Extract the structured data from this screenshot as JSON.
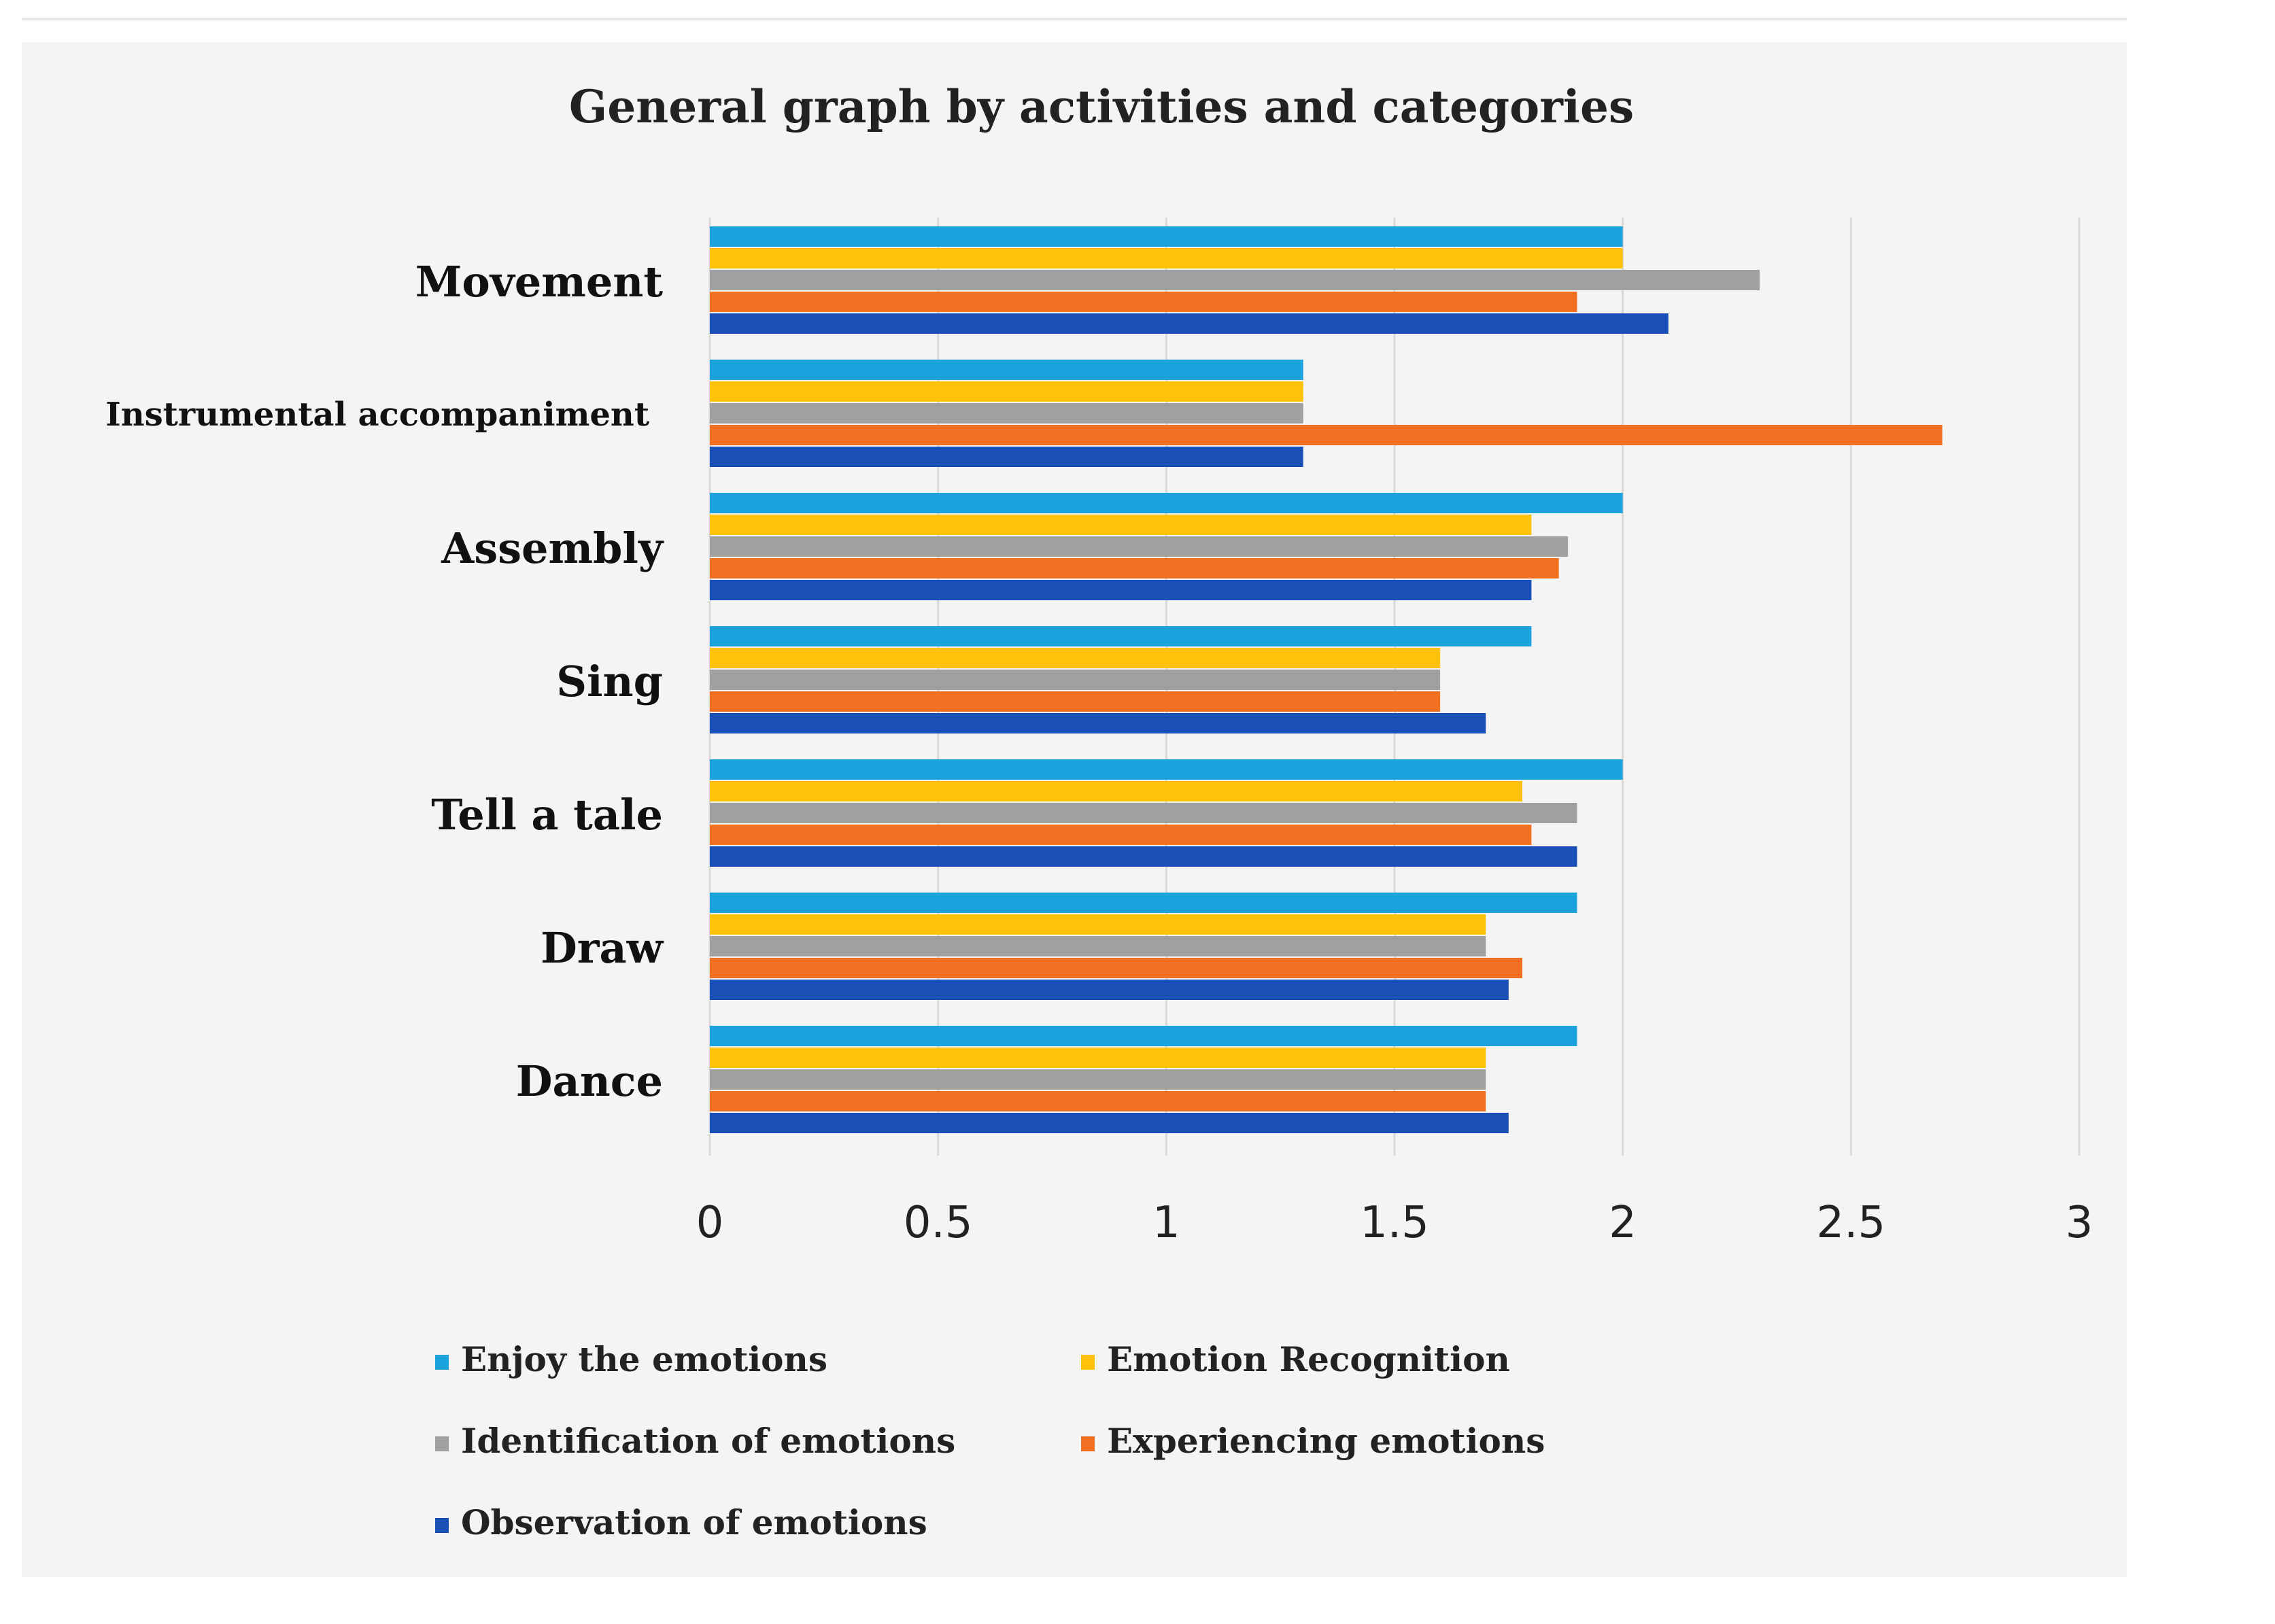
{
  "chart_data": {
    "type": "bar",
    "orientation": "horizontal",
    "title": "General graph by activities and categories",
    "xlabel": "",
    "ylabel": "",
    "xlim": [
      0,
      3
    ],
    "x_ticks": [
      "0",
      "0.5",
      "1",
      "1.5",
      "2",
      "2.5",
      "3"
    ],
    "grid": "vertical lines",
    "legend_position": "bottom",
    "categories": [
      "Movement",
      "Instrumental accompaniment",
      "Assembly",
      "Sing",
      "Tell a tale",
      "Draw",
      "Dance"
    ],
    "series": [
      {
        "name": "Enjoy the emotions",
        "color": "#1aa3dc",
        "values": [
          2.0,
          1.3,
          2.0,
          1.8,
          2.0,
          1.9,
          1.9
        ]
      },
      {
        "name": "Emotion Recognition",
        "color": "#ffc20a",
        "values": [
          2.0,
          1.3,
          1.8,
          1.6,
          1.78,
          1.7,
          1.7
        ]
      },
      {
        "name": "Identification of emotions",
        "color": "#a0a0a0",
        "values": [
          2.3,
          1.3,
          1.88,
          1.6,
          1.9,
          1.7,
          1.7
        ]
      },
      {
        "name": "Experiencing emotions",
        "color": "#f36f21",
        "values": [
          1.9,
          2.7,
          1.86,
          1.6,
          1.8,
          1.78,
          1.7
        ]
      },
      {
        "name": "Observation of emotions",
        "color": "#1b4fb8",
        "values": [
          2.1,
          1.3,
          1.8,
          1.7,
          1.9,
          1.75,
          1.75
        ]
      }
    ]
  }
}
